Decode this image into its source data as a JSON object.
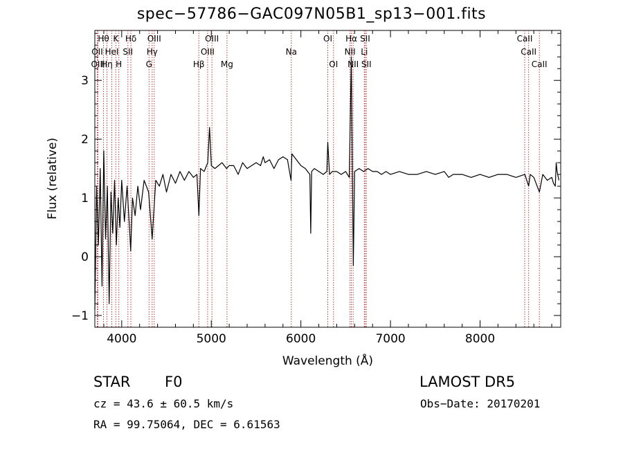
{
  "chart_data": {
    "type": "line",
    "title": "spec−57786−GAC097N05B1_sp13−001.fits",
    "xlabel": "Wavelength (Å)",
    "ylabel": "Flux (relative)",
    "xlim": [
      3700,
      8900
    ],
    "ylim": [
      -1.2,
      3.85
    ],
    "xticks": [
      4000,
      5000,
      6000,
      7000,
      8000
    ],
    "yticks": [
      -1,
      0,
      1,
      2,
      3
    ],
    "x_minor_step": 200,
    "y_minor_step": 0.2,
    "grid": false,
    "series_color": "#000000",
    "line_marker_color": "#b23a3a",
    "spectrum": {
      "x": [
        3700,
        3720,
        3740,
        3760,
        3780,
        3800,
        3820,
        3840,
        3860,
        3880,
        3900,
        3920,
        3940,
        3960,
        3980,
        4000,
        4030,
        4060,
        4090,
        4100,
        4120,
        4150,
        4180,
        4210,
        4250,
        4300,
        4340,
        4380,
        4420,
        4460,
        4500,
        4550,
        4600,
        4650,
        4700,
        4750,
        4800,
        4840,
        4861,
        4880,
        4920,
        4960,
        4980,
        5000,
        5040,
        5080,
        5120,
        5170,
        5200,
        5250,
        5300,
        5350,
        5400,
        5450,
        5500,
        5550,
        5580,
        5600,
        5650,
        5700,
        5750,
        5800,
        5850,
        5890,
        5900,
        5950,
        6000,
        6050,
        6100,
        6110,
        6120,
        6150,
        6200,
        6250,
        6290,
        6300,
        6320,
        6350,
        6400,
        6450,
        6500,
        6540,
        6563,
        6575,
        6585,
        6600,
        6650,
        6700,
        6750,
        6800,
        6850,
        6900,
        6950,
        7000,
        7100,
        7200,
        7300,
        7400,
        7500,
        7600,
        7650,
        7700,
        7800,
        7900,
        8000,
        8100,
        8200,
        8300,
        8400,
        8500,
        8542,
        8560,
        8600,
        8662,
        8700,
        8750,
        8800,
        8820,
        8840,
        8850,
        8860,
        8880
      ],
      "y": [
        -0.9,
        1.2,
        0.2,
        1.5,
        -0.5,
        1.8,
        0.3,
        1.2,
        -0.8,
        1.1,
        0.4,
        1.3,
        0.2,
        1.0,
        0.5,
        1.3,
        0.6,
        1.2,
        0.4,
        0.1,
        1.0,
        0.7,
        1.2,
        0.8,
        1.3,
        1.1,
        0.3,
        1.3,
        1.2,
        1.4,
        1.1,
        1.4,
        1.25,
        1.45,
        1.3,
        1.45,
        1.35,
        1.4,
        0.7,
        1.5,
        1.45,
        1.6,
        2.2,
        1.55,
        1.5,
        1.55,
        1.6,
        1.5,
        1.55,
        1.55,
        1.4,
        1.6,
        1.5,
        1.55,
        1.6,
        1.55,
        1.7,
        1.6,
        1.65,
        1.5,
        1.65,
        1.7,
        1.65,
        1.3,
        1.75,
        1.65,
        1.55,
        1.5,
        1.4,
        0.4,
        1.45,
        1.5,
        1.45,
        1.4,
        1.45,
        1.95,
        1.4,
        1.45,
        1.45,
        1.4,
        1.45,
        1.35,
        3.4,
        1.4,
        -0.15,
        1.45,
        1.5,
        1.45,
        1.5,
        1.45,
        1.45,
        1.4,
        1.45,
        1.4,
        1.45,
        1.4,
        1.4,
        1.45,
        1.4,
        1.45,
        1.35,
        1.4,
        1.4,
        1.35,
        1.4,
        1.35,
        1.4,
        1.4,
        1.35,
        1.4,
        1.2,
        1.4,
        1.35,
        1.1,
        1.4,
        1.3,
        1.35,
        1.25,
        1.2,
        1.6,
        1.45,
        1.3
      ]
    },
    "lines": [
      {
        "name": "Hθ",
        "x": 3797,
        "row": 0
      },
      {
        "name": "K",
        "x": 3934,
        "row": 0
      },
      {
        "name": "Hδ",
        "x": 4102,
        "row": 0
      },
      {
        "name": "OIII",
        "x": 4363,
        "row": 0
      },
      {
        "name": "OIII",
        "x": 5007,
        "row": 0
      },
      {
        "name": "OI",
        "x": 6300,
        "row": 0
      },
      {
        "name": "Hα",
        "x": 6563,
        "row": 0
      },
      {
        "name": "SII",
        "x": 6717,
        "row": 0
      },
      {
        "name": "CaII",
        "x": 8498,
        "row": 0
      },
      {
        "name": "OII",
        "x": 3727,
        "row": 1
      },
      {
        "name": "HeI",
        "x": 3889,
        "row": 1
      },
      {
        "name": "SII",
        "x": 4069,
        "row": 1
      },
      {
        "name": "Hγ",
        "x": 4340,
        "row": 1
      },
      {
        "name": "OIII",
        "x": 4959,
        "row": 1
      },
      {
        "name": "Na",
        "x": 5893,
        "row": 1
      },
      {
        "name": "NII",
        "x": 6548,
        "row": 1
      },
      {
        "name": "Li",
        "x": 6708,
        "row": 1
      },
      {
        "name": "CaII",
        "x": 8542,
        "row": 1
      },
      {
        "name": "OIII",
        "x": 3735,
        "row": 2
      },
      {
        "name": "Hη",
        "x": 3835,
        "row": 2
      },
      {
        "name": "H",
        "x": 3968,
        "row": 2
      },
      {
        "name": "G",
        "x": 4305,
        "row": 2
      },
      {
        "name": "Hβ",
        "x": 4861,
        "row": 2
      },
      {
        "name": "Mg",
        "x": 5175,
        "row": 2
      },
      {
        "name": "OI",
        "x": 6364,
        "row": 2
      },
      {
        "name": "NII",
        "x": 6583,
        "row": 2
      },
      {
        "name": "SII",
        "x": 6731,
        "row": 2
      },
      {
        "name": "CaII",
        "x": 8662,
        "row": 2
      }
    ]
  },
  "footer": {
    "object_class": "STAR",
    "subclass": "F0",
    "survey": "LAMOST DR5",
    "redshift": "cz = 43.6 ± 60.5 km/s",
    "obs_date": "Obs−Date: 20170201",
    "coords": "RA =  99.75064, DEC =   6.61563"
  }
}
